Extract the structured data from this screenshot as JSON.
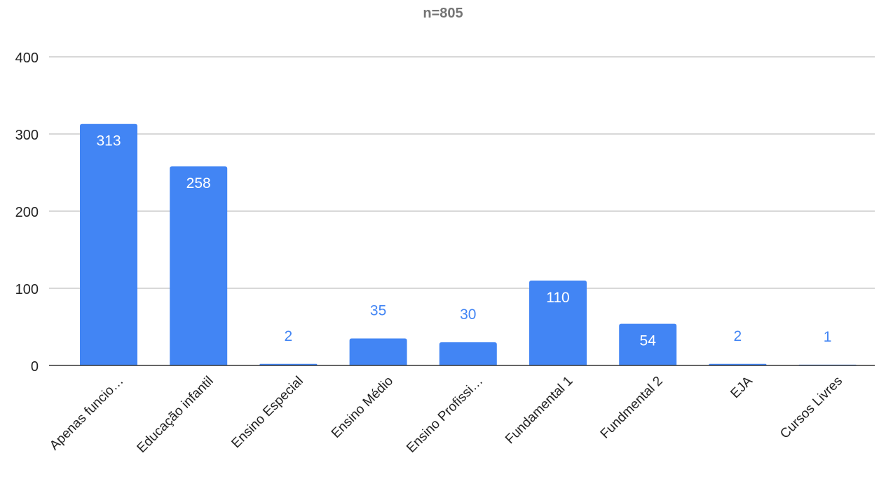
{
  "chart_data": {
    "type": "bar",
    "title": "n=805",
    "xlabel": "",
    "ylabel": "",
    "categories": [
      "Apenas funcio…",
      "Educação infantil",
      "Ensino Especial",
      "Ensino Médio",
      "Ensino Profissi…",
      "Fundamental 1",
      "Fundmental 2",
      "EJA",
      "Cursos Livres"
    ],
    "values": [
      313,
      258,
      2,
      35,
      30,
      110,
      54,
      2,
      1
    ],
    "data_labels": [
      "313",
      "258",
      "2",
      "35",
      "30",
      "110",
      "54",
      "2",
      "1"
    ],
    "ylim": [
      0,
      400
    ],
    "yticks": [
      0,
      100,
      200,
      300,
      400
    ],
    "ytick_labels": [
      "0",
      "100",
      "200",
      "300",
      "400"
    ],
    "grid": true,
    "legend": "none",
    "colors": {
      "bar": "#4285F4",
      "label_inside": "#ffffff",
      "label_outside": "#4285F4",
      "grid": "#cccccc",
      "axis": "#333333",
      "tick_text": "#222222",
      "title": "#757575"
    }
  }
}
